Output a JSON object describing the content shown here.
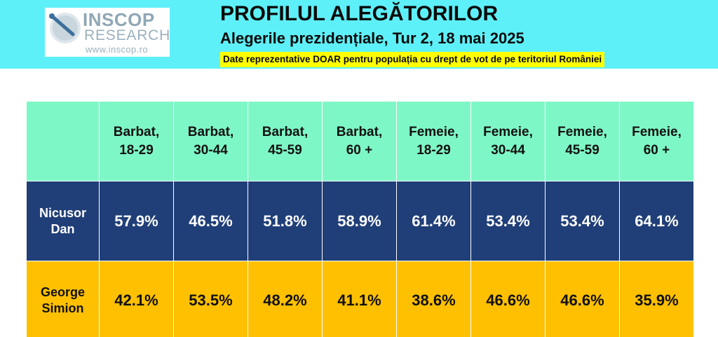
{
  "logo": {
    "line1": "INSCOP",
    "line2": "RESEARCH",
    "line3": "www.inscop.ro"
  },
  "header": {
    "title": "PROFILUL ALEGĂTORILOR",
    "subtitle": "Alegerile prezidențiale, Tur 2, 18 mai 2025",
    "note": "Date reprezentative DOAR pentru populația cu drept de vot de pe teritoriul României"
  },
  "chart_data": {
    "type": "table",
    "categories": [
      [
        "Barbat,",
        "18-29"
      ],
      [
        "Barbat,",
        "30-44"
      ],
      [
        "Barbat,",
        "45-59"
      ],
      [
        "Barbat,",
        "60 +"
      ],
      [
        "Femeie,",
        "18-29"
      ],
      [
        "Femeie,",
        "30-44"
      ],
      [
        "Femeie,",
        "45-59"
      ],
      [
        "Femeie,",
        "60 +"
      ]
    ],
    "series": [
      {
        "name": [
          "Nicusor",
          "Dan"
        ],
        "values": [
          "57.9%",
          "46.5%",
          "51.8%",
          "58.9%",
          "61.4%",
          "53.4%",
          "53.4%",
          "64.1%"
        ]
      },
      {
        "name": [
          "George",
          "Simion"
        ],
        "values": [
          "42.1%",
          "53.5%",
          "48.2%",
          "41.1%",
          "38.6%",
          "46.6%",
          "46.6%",
          "35.9%"
        ]
      }
    ]
  },
  "colors": {
    "header_bg": "#5ef0f8",
    "note_bg": "#ffff00",
    "table_header_bg": "#7ef7c6",
    "row_dan_bg": "#203f78",
    "row_simion_bg": "#fec000"
  }
}
